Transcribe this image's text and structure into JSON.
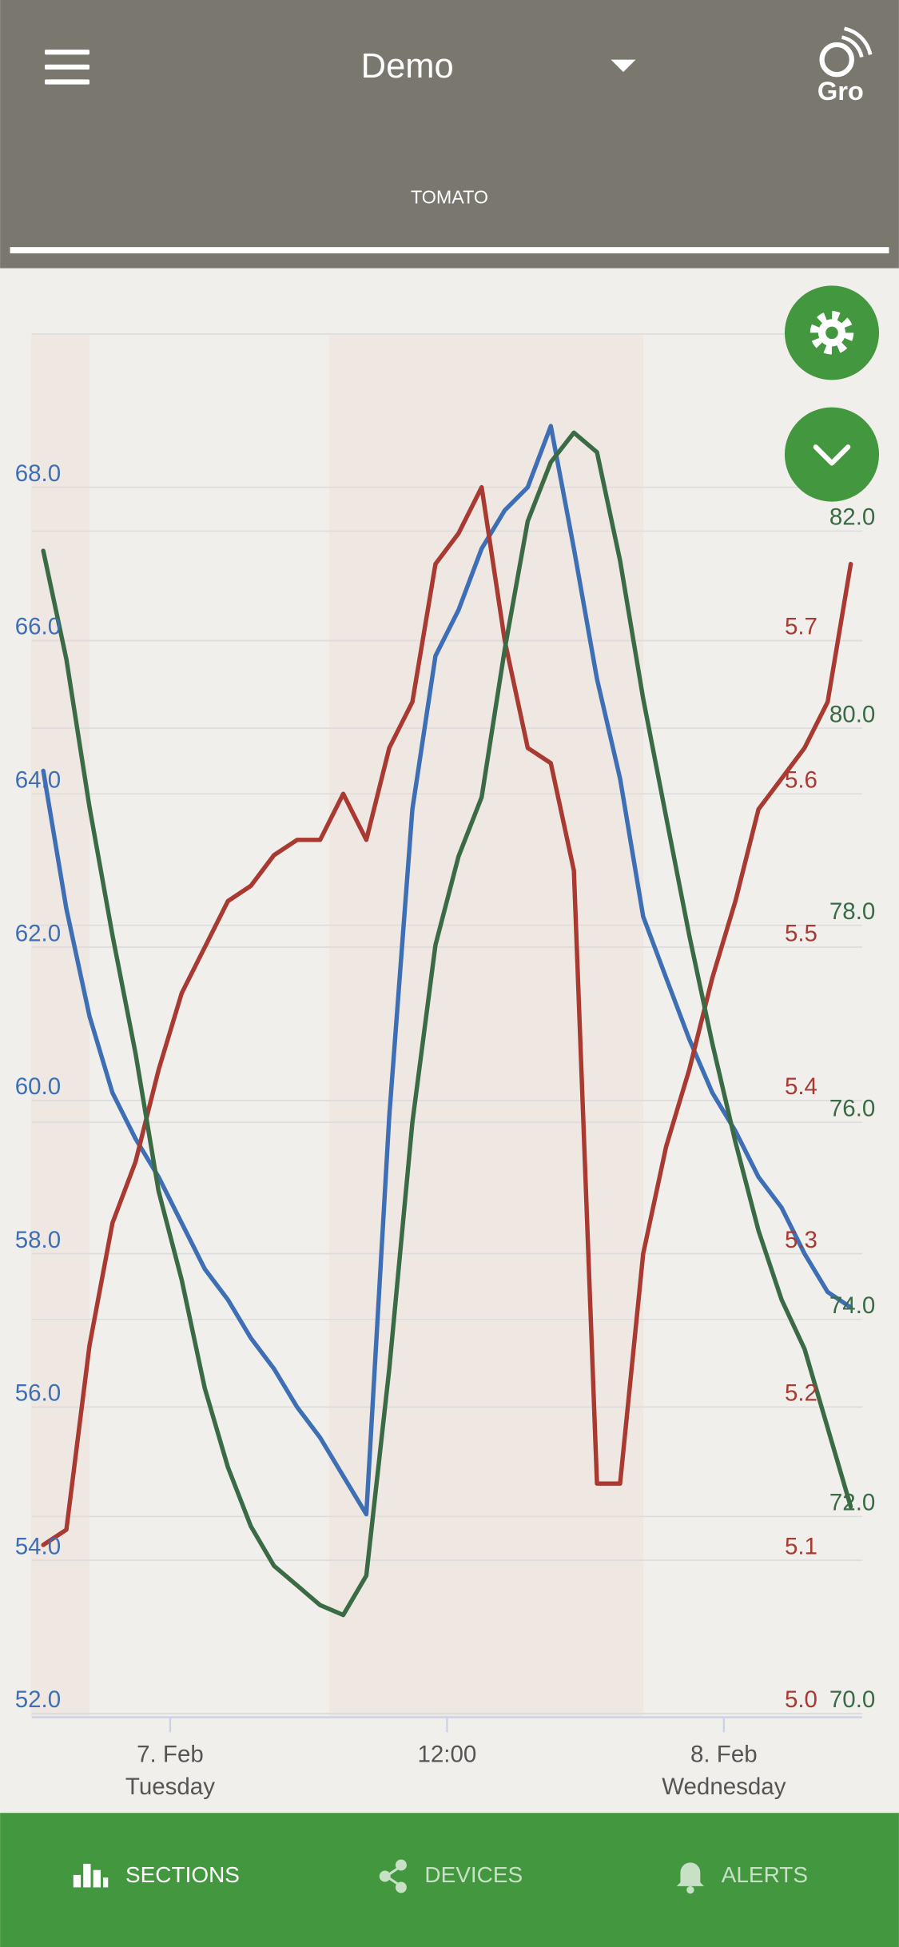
{
  "app_bar": {
    "title": "Demo",
    "tab": "TOMATO",
    "logo_text": "Gro"
  },
  "chart_data": {
    "type": "line",
    "x": [
      -5.5,
      -4.5,
      -3.5,
      -2.5,
      -1.5,
      -0.5,
      0.5,
      1.5,
      2.5,
      3.5,
      4.5,
      5.5,
      6.5,
      7.5,
      8.5,
      9.5,
      10.5,
      11.5,
      12.5,
      13.5,
      14.5,
      15.5,
      16.5,
      17.5,
      18.5,
      19.5,
      20.5,
      21.5,
      22.5,
      23.5,
      24.5,
      25.5,
      26.5,
      27.5,
      28.5,
      29.5
    ],
    "xlim": [
      -6,
      30
    ],
    "xticks": [
      {
        "value": 0,
        "label": "7. Feb",
        "sublabel": "Tuesday"
      },
      {
        "value": 12,
        "label": "12:00"
      },
      {
        "value": 24,
        "label": "8. Feb",
        "sublabel": "Wednesday"
      }
    ],
    "ylim": [
      52,
      70
    ],
    "yticks": [
      {
        "value": 52,
        "label": "52.0"
      },
      {
        "value": 54,
        "label": "54.0"
      },
      {
        "value": 56,
        "label": "56.0"
      },
      {
        "value": 58,
        "label": "58.0"
      },
      {
        "value": 60,
        "label": "60.0"
      },
      {
        "value": 62,
        "label": "62.0"
      },
      {
        "value": 64,
        "label": "64.0"
      },
      {
        "value": 66,
        "label": "66.0"
      },
      {
        "value": 68,
        "label": "68.0"
      }
    ],
    "y2lim": [
      5.0,
      5.9
    ],
    "y2ticks": [
      {
        "value": 5.0,
        "label": "5.0"
      },
      {
        "value": 5.1,
        "label": "5.1"
      },
      {
        "value": 5.2,
        "label": "5.2"
      },
      {
        "value": 5.3,
        "label": "5.3"
      },
      {
        "value": 5.4,
        "label": "5.4"
      },
      {
        "value": 5.5,
        "label": "5.5"
      },
      {
        "value": 5.6,
        "label": "5.6"
      },
      {
        "value": 5.7,
        "label": "5.7"
      }
    ],
    "y3lim": [
      70,
      84
    ],
    "y3ticks": [
      {
        "value": 70,
        "label": "70.0"
      },
      {
        "value": 72,
        "label": "72.0"
      },
      {
        "value": 74,
        "label": "74.0"
      },
      {
        "value": 76,
        "label": "76.0"
      },
      {
        "value": 78,
        "label": "78.0"
      },
      {
        "value": 80,
        "label": "80.0"
      },
      {
        "value": 82,
        "label": "82.0"
      }
    ],
    "grid": true,
    "series": [
      {
        "axis": "y",
        "color": "#3e6fb5",
        "values": [
          64.3,
          62.5,
          61.1,
          60.1,
          59.5,
          59.0,
          58.4,
          57.8,
          57.4,
          56.9,
          56.5,
          56.0,
          55.6,
          55.1,
          54.6,
          59.8,
          63.8,
          65.8,
          66.4,
          67.2,
          67.7,
          68.0,
          68.8,
          67.2,
          65.5,
          64.2,
          62.4,
          61.6,
          60.8,
          60.1,
          59.6,
          59.0,
          58.6,
          58.0,
          57.5,
          57.3
        ]
      },
      {
        "axis": "y2",
        "color": "#a83a32",
        "values": [
          5.11,
          5.12,
          5.24,
          5.32,
          5.36,
          5.42,
          5.47,
          5.5,
          5.53,
          5.54,
          5.56,
          5.57,
          5.57,
          5.6,
          5.57,
          5.63,
          5.66,
          5.75,
          5.77,
          5.8,
          5.7,
          5.63,
          5.62,
          5.55,
          5.15,
          5.15,
          5.3,
          5.37,
          5.42,
          5.48,
          5.53,
          5.59,
          5.61,
          5.63,
          5.66,
          5.75
        ]
      },
      {
        "axis": "y3",
        "color": "#3a6b45",
        "values": [
          81.8,
          80.7,
          79.2,
          77.9,
          76.7,
          75.3,
          74.4,
          73.3,
          72.5,
          71.9,
          71.5,
          71.3,
          71.1,
          71.0,
          71.4,
          73.5,
          76.0,
          77.8,
          78.7,
          79.3,
          80.8,
          82.1,
          82.7,
          83.0,
          82.8,
          81.7,
          80.3,
          79.1,
          77.9,
          76.8,
          75.8,
          74.9,
          74.2,
          73.7,
          72.9,
          72.1
        ]
      }
    ]
  },
  "nav": {
    "items": [
      "SECTIONS",
      "DEVICES",
      "ALERTS"
    ]
  }
}
